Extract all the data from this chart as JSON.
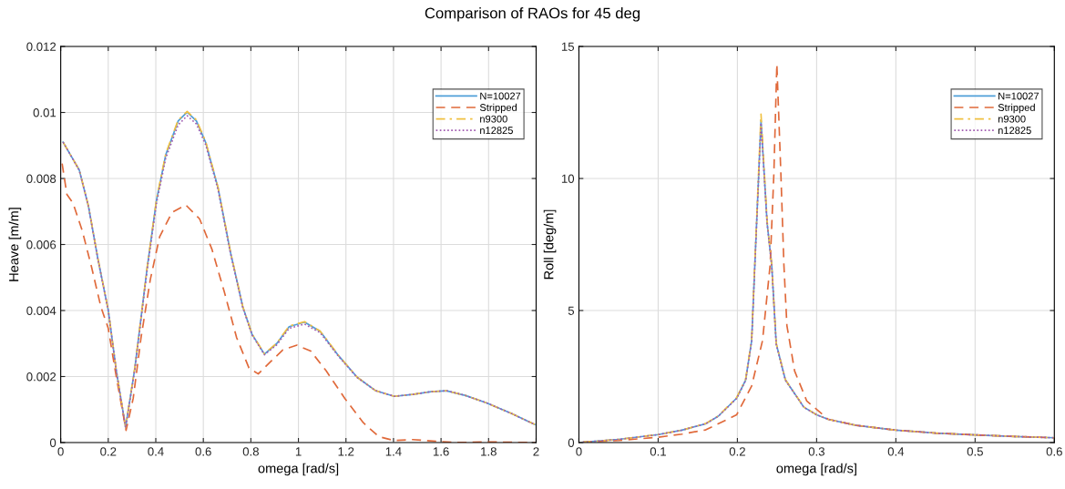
{
  "chart_data": [
    {
      "type": "line",
      "title": "Comparison of RAOs for 45 deg",
      "xlabel": "omega [rad/s]",
      "ylabel": "Heave [m/m]",
      "xlim": [
        0,
        2
      ],
      "ylim": [
        0,
        0.012
      ],
      "xticks": [
        0,
        0.2,
        0.4,
        0.6,
        0.8,
        1,
        1.2,
        1.4,
        1.6,
        1.8,
        2
      ],
      "yticks": [
        0,
        0.002,
        0.004,
        0.006,
        0.008,
        0.01,
        0.012
      ],
      "grid": true,
      "legend": "top right",
      "series": [
        {
          "name": "N=10027",
          "color": "#4f9fd8",
          "line_style": "solid",
          "x": [
            0.01,
            0.078,
            0.117,
            0.156,
            0.2,
            0.234,
            0.273,
            0.312,
            0.364,
            0.403,
            0.442,
            0.494,
            0.532,
            0.571,
            0.61,
            0.662,
            0.714,
            0.766,
            0.805,
            0.857,
            0.909,
            0.961,
            1.026,
            1.091,
            1.169,
            1.247,
            1.325,
            1.403,
            1.481,
            1.558,
            1.623,
            1.701,
            1.792,
            1.896,
            1.994
          ],
          "values": [
            0.0091,
            0.00826,
            0.00715,
            0.00558,
            0.00401,
            0.00217,
            0.00046,
            0.00226,
            0.00531,
            0.00734,
            0.00872,
            0.00974,
            0.01001,
            0.00974,
            0.00909,
            0.00771,
            0.00577,
            0.00411,
            0.00328,
            0.00268,
            0.003,
            0.00351,
            0.00365,
            0.00337,
            0.00263,
            0.00198,
            0.00157,
            0.0014,
            0.00146,
            0.00154,
            0.00157,
            0.00143,
            0.0012,
            0.00088,
            0.00055
          ]
        },
        {
          "name": "Stripped",
          "color": "#e0693a",
          "line_style": "dashed",
          "x": [
            0.006,
            0.026,
            0.052,
            0.091,
            0.13,
            0.169,
            0.2,
            0.234,
            0.275,
            0.305,
            0.338,
            0.377,
            0.416,
            0.468,
            0.526,
            0.584,
            0.636,
            0.688,
            0.74,
            0.792,
            0.831,
            0.883,
            0.935,
            0.994,
            1.052,
            1.117,
            1.195,
            1.273,
            1.338,
            1.403,
            1.481,
            1.597,
            1.662,
            1.792,
            1.994
          ],
          "values": [
            0.00845,
            0.00752,
            0.00725,
            0.00641,
            0.00531,
            0.00411,
            0.00346,
            0.00198,
            0.00037,
            0.00134,
            0.00318,
            0.00494,
            0.00623,
            0.00697,
            0.0072,
            0.00678,
            0.00586,
            0.00457,
            0.00318,
            0.00226,
            0.00208,
            0.00245,
            0.00281,
            0.00295,
            0.00277,
            0.00217,
            0.00134,
            0.0006,
            0.00018,
            6e-05,
            9e-05,
            3e-05,
            0,
            2e-05,
            0
          ]
        },
        {
          "name": "n9300",
          "color": "#f0c040",
          "line_style": "dashdot",
          "x": [
            0.01,
            0.078,
            0.117,
            0.156,
            0.2,
            0.234,
            0.273,
            0.312,
            0.364,
            0.403,
            0.442,
            0.494,
            0.532,
            0.571,
            0.61,
            0.662,
            0.714,
            0.766,
            0.805,
            0.857,
            0.909,
            0.961,
            1.026,
            1.091,
            1.169,
            1.247,
            1.325,
            1.403,
            1.481,
            1.558,
            1.623,
            1.701,
            1.792,
            1.896,
            1.994
          ],
          "values": [
            0.0091,
            0.00826,
            0.00716,
            0.0056,
            0.00402,
            0.00218,
            0.00047,
            0.00228,
            0.00533,
            0.00737,
            0.00875,
            0.00977,
            0.01003,
            0.00977,
            0.00912,
            0.00773,
            0.00579,
            0.00412,
            0.00329,
            0.00269,
            0.00301,
            0.00353,
            0.00366,
            0.00338,
            0.00264,
            0.00198,
            0.00157,
            0.0014,
            0.00146,
            0.00154,
            0.00157,
            0.00143,
            0.0012,
            0.00088,
            0.00055
          ]
        },
        {
          "name": "n12825",
          "color": "#a05ab0",
          "line_style": "dotted",
          "x": [
            0.01,
            0.078,
            0.117,
            0.156,
            0.2,
            0.234,
            0.273,
            0.312,
            0.364,
            0.403,
            0.442,
            0.494,
            0.532,
            0.571,
            0.61,
            0.662,
            0.714,
            0.766,
            0.805,
            0.857,
            0.909,
            0.961,
            1.026,
            1.091,
            1.169,
            1.247,
            1.325,
            1.403,
            1.481,
            1.558,
            1.623,
            1.701,
            1.792,
            1.896,
            1.994
          ],
          "values": [
            0.0091,
            0.00825,
            0.00714,
            0.00557,
            0.004,
            0.00216,
            0.00045,
            0.00222,
            0.00525,
            0.00725,
            0.00862,
            0.00962,
            0.0099,
            0.00965,
            0.00902,
            0.00766,
            0.00574,
            0.00409,
            0.00326,
            0.00266,
            0.00296,
            0.00346,
            0.00359,
            0.00333,
            0.00261,
            0.00197,
            0.00157,
            0.0014,
            0.00146,
            0.00154,
            0.00157,
            0.00143,
            0.0012,
            0.00088,
            0.00055
          ]
        }
      ]
    },
    {
      "type": "line",
      "xlabel": "omega [rad/s]",
      "ylabel": "Roll [deg/m]",
      "xlim": [
        0,
        0.6
      ],
      "ylim": [
        0,
        15
      ],
      "xticks": [
        0,
        0.1,
        0.2,
        0.3,
        0.4,
        0.5,
        0.6
      ],
      "yticks": [
        0,
        5,
        10,
        15
      ],
      "grid": true,
      "legend": "top right",
      "series": [
        {
          "name": "N=10027",
          "color": "#4f9fd8",
          "line_style": "solid",
          "x": [
            0.005,
            0.05,
            0.1,
            0.13,
            0.16,
            0.176,
            0.199,
            0.2104,
            0.218,
            0.222,
            0.2298,
            0.2375,
            0.2433,
            0.249,
            0.2606,
            0.2838,
            0.3,
            0.3146,
            0.35,
            0.4,
            0.45,
            0.5,
            0.55,
            0.6
          ],
          "values": [
            0.01,
            0.12,
            0.3,
            0.47,
            0.71,
            1.0,
            1.68,
            2.37,
            3.86,
            6.72,
            12.2,
            8.32,
            6.72,
            3.74,
            2.37,
            1.34,
            1.05,
            0.88,
            0.65,
            0.47,
            0.36,
            0.29,
            0.23,
            0.18
          ]
        },
        {
          "name": "Stripped",
          "color": "#e0693a",
          "line_style": "dashed",
          "x": [
            0.005,
            0.05,
            0.1,
            0.13,
            0.16,
            0.199,
            0.218,
            0.2317,
            0.2413,
            0.246,
            0.2498,
            0.2549,
            0.2587,
            0.2625,
            0.2722,
            0.2876,
            0.3146,
            0.35,
            0.4,
            0.45,
            0.5,
            0.55,
            0.6
          ],
          "values": [
            0.01,
            0.08,
            0.2,
            0.32,
            0.48,
            1.05,
            2.14,
            3.86,
            6.72,
            10.16,
            14.33,
            10.16,
            6.72,
            4.43,
            2.71,
            1.57,
            0.88,
            0.65,
            0.47,
            0.36,
            0.29,
            0.23,
            0.18
          ]
        },
        {
          "name": "n9300",
          "color": "#f0c040",
          "line_style": "dashdot",
          "x": [
            0.005,
            0.05,
            0.1,
            0.13,
            0.16,
            0.176,
            0.199,
            0.2104,
            0.218,
            0.222,
            0.2298,
            0.2375,
            0.2433,
            0.249,
            0.2606,
            0.2838,
            0.3,
            0.3146,
            0.35,
            0.4,
            0.45,
            0.5,
            0.55,
            0.6
          ],
          "values": [
            0.01,
            0.12,
            0.3,
            0.47,
            0.72,
            1.01,
            1.7,
            2.4,
            3.9,
            6.8,
            12.44,
            8.4,
            6.75,
            3.76,
            2.38,
            1.35,
            1.05,
            0.88,
            0.65,
            0.47,
            0.36,
            0.29,
            0.23,
            0.18
          ]
        },
        {
          "name": "n12825",
          "color": "#a05ab0",
          "line_style": "dotted",
          "x": [
            0.005,
            0.05,
            0.1,
            0.13,
            0.16,
            0.176,
            0.199,
            0.2104,
            0.218,
            0.222,
            0.2298,
            0.2375,
            0.2433,
            0.249,
            0.2606,
            0.2838,
            0.3,
            0.3146,
            0.35,
            0.4,
            0.45,
            0.5,
            0.55,
            0.6
          ],
          "values": [
            0.01,
            0.12,
            0.3,
            0.47,
            0.71,
            1.0,
            1.67,
            2.35,
            3.84,
            6.7,
            12.1,
            8.3,
            6.7,
            3.72,
            2.36,
            1.34,
            1.05,
            0.88,
            0.65,
            0.47,
            0.36,
            0.29,
            0.23,
            0.18
          ]
        }
      ]
    }
  ]
}
